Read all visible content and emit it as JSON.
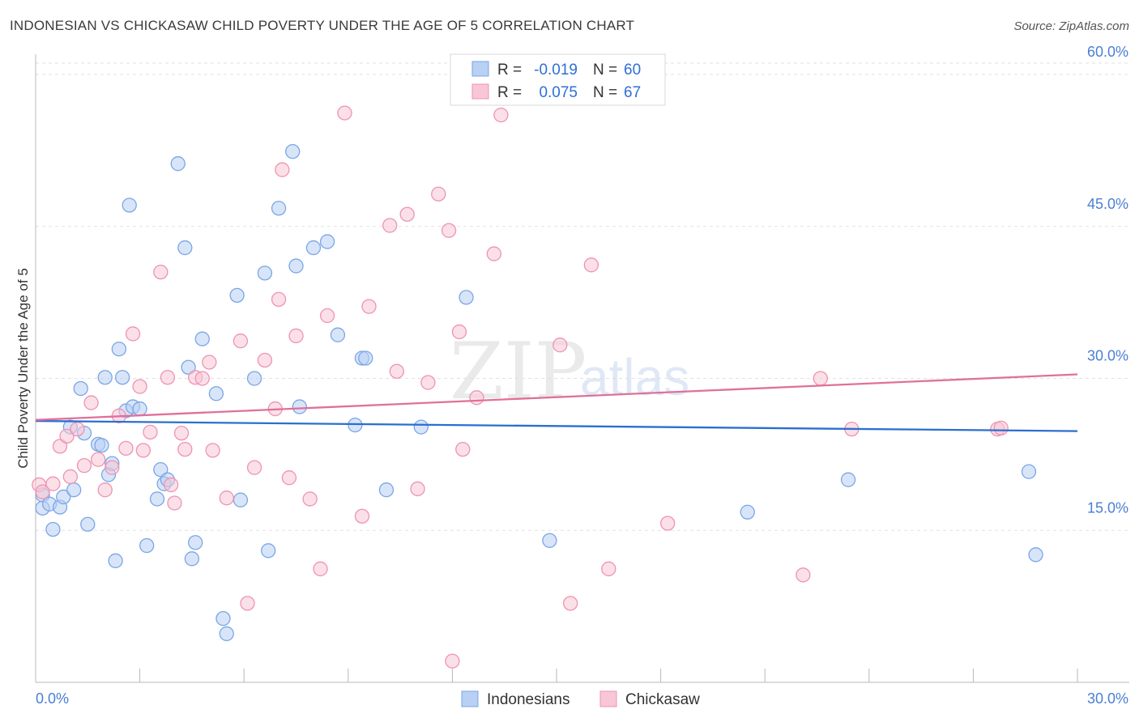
{
  "title": "INDONESIAN VS CHICKASAW CHILD POVERTY UNDER THE AGE OF 5 CORRELATION CHART",
  "source": "Source: ZipAtlas.com",
  "watermark": {
    "zip": "ZIP",
    "atlas": "atlas"
  },
  "colors": {
    "indonesians_fill": "#b8d0f4",
    "indonesians_stroke": "#7aa6e6",
    "indonesians_line": "#2a6fcf",
    "chickasaw_fill": "#f8c6d6",
    "chickasaw_stroke": "#ee93b3",
    "chickasaw_line": "#e0709a",
    "tick_color": "#4a7fd4",
    "grid": "#e2e2e2"
  },
  "legend_top": {
    "rows": [
      {
        "r_label": "R =",
        "r_value": "-0.019",
        "n_label": "N =",
        "n_value": "60"
      },
      {
        "r_label": "R =",
        "r_value": "0.075",
        "n_label": "N =",
        "n_value": "67"
      }
    ]
  },
  "legend_bottom": {
    "items": [
      "Indonesians",
      "Chickasaw"
    ]
  },
  "chart_data": {
    "type": "scatter",
    "title": "INDONESIAN VS CHICKASAW CHILD POVERTY UNDER THE AGE OF 5 CORRELATION CHART",
    "xlabel": "",
    "ylabel": "Child Poverty Under the Age of 5",
    "xlim": [
      0,
      30
    ],
    "ylim": [
      0,
      61.6
    ],
    "x_tick_labels": [
      "0.0%",
      "30.0%"
    ],
    "y_ticks": [
      15,
      30,
      45,
      60
    ],
    "y_tick_labels": [
      "15.0%",
      "30.0%",
      "45.0%",
      "60.0%"
    ],
    "grid": true,
    "series": [
      {
        "name": "Indonesians",
        "r": -0.019,
        "n": 60,
        "trend": [
          [
            0,
            25.8
          ],
          [
            30,
            24.8
          ]
        ],
        "points": [
          [
            0.2,
            18.5
          ],
          [
            0.2,
            17.2
          ],
          [
            0.4,
            17.6
          ],
          [
            0.5,
            15.1
          ],
          [
            0.7,
            17.3
          ],
          [
            0.8,
            18.3
          ],
          [
            1.0,
            25.2
          ],
          [
            1.1,
            19.0
          ],
          [
            1.3,
            29.0
          ],
          [
            1.4,
            24.6
          ],
          [
            1.5,
            15.6
          ],
          [
            1.8,
            23.5
          ],
          [
            1.9,
            23.4
          ],
          [
            2.0,
            30.1
          ],
          [
            2.1,
            20.5
          ],
          [
            2.2,
            21.6
          ],
          [
            2.3,
            12.0
          ],
          [
            2.4,
            32.9
          ],
          [
            2.5,
            30.1
          ],
          [
            2.6,
            26.8
          ],
          [
            2.7,
            47.1
          ],
          [
            2.8,
            27.2
          ],
          [
            3.0,
            27.0
          ],
          [
            3.2,
            13.5
          ],
          [
            3.5,
            18.1
          ],
          [
            3.6,
            21.0
          ],
          [
            3.7,
            19.6
          ],
          [
            3.8,
            20.0
          ],
          [
            4.1,
            51.2
          ],
          [
            4.3,
            42.9
          ],
          [
            4.4,
            31.1
          ],
          [
            4.5,
            12.2
          ],
          [
            4.6,
            13.8
          ],
          [
            4.8,
            33.9
          ],
          [
            5.2,
            28.5
          ],
          [
            5.4,
            6.3
          ],
          [
            5.5,
            4.8
          ],
          [
            5.8,
            38.2
          ],
          [
            5.9,
            18.0
          ],
          [
            6.3,
            30.0
          ],
          [
            6.6,
            40.4
          ],
          [
            6.7,
            13.0
          ],
          [
            7.0,
            46.8
          ],
          [
            7.4,
            52.4
          ],
          [
            7.5,
            41.1
          ],
          [
            7.6,
            27.2
          ],
          [
            8.0,
            42.9
          ],
          [
            8.4,
            43.5
          ],
          [
            8.7,
            34.3
          ],
          [
            9.2,
            25.4
          ],
          [
            9.4,
            32.0
          ],
          [
            9.5,
            32.0
          ],
          [
            10.1,
            19.0
          ],
          [
            11.1,
            25.2
          ],
          [
            12.4,
            38.0
          ],
          [
            14.8,
            14.0
          ],
          [
            20.5,
            16.8
          ],
          [
            23.4,
            20.0
          ],
          [
            28.6,
            20.8
          ],
          [
            28.8,
            12.6
          ]
        ]
      },
      {
        "name": "Chickasaw",
        "r": 0.075,
        "n": 67,
        "trend": [
          [
            0,
            25.9
          ],
          [
            30,
            30.4
          ]
        ],
        "points": [
          [
            0.1,
            19.5
          ],
          [
            0.2,
            18.8
          ],
          [
            0.5,
            19.6
          ],
          [
            0.7,
            23.3
          ],
          [
            0.9,
            24.3
          ],
          [
            1.0,
            20.3
          ],
          [
            1.2,
            25.0
          ],
          [
            1.4,
            21.4
          ],
          [
            1.6,
            27.6
          ],
          [
            1.8,
            22.0
          ],
          [
            2.0,
            19.0
          ],
          [
            2.2,
            21.2
          ],
          [
            2.4,
            26.3
          ],
          [
            2.6,
            23.1
          ],
          [
            2.8,
            34.4
          ],
          [
            3.0,
            29.2
          ],
          [
            3.1,
            22.9
          ],
          [
            3.3,
            24.7
          ],
          [
            3.6,
            40.5
          ],
          [
            3.8,
            30.1
          ],
          [
            3.9,
            19.5
          ],
          [
            4.0,
            17.7
          ],
          [
            4.2,
            24.6
          ],
          [
            4.3,
            23.0
          ],
          [
            4.6,
            30.1
          ],
          [
            4.8,
            30.0
          ],
          [
            5.0,
            31.6
          ],
          [
            5.1,
            22.9
          ],
          [
            5.5,
            18.2
          ],
          [
            5.9,
            33.7
          ],
          [
            6.1,
            7.8
          ],
          [
            6.3,
            21.2
          ],
          [
            6.6,
            31.8
          ],
          [
            6.9,
            27.0
          ],
          [
            7.0,
            37.8
          ],
          [
            7.1,
            50.6
          ],
          [
            7.3,
            20.2
          ],
          [
            7.5,
            34.2
          ],
          [
            7.9,
            18.1
          ],
          [
            8.2,
            11.2
          ],
          [
            8.4,
            36.2
          ],
          [
            8.9,
            56.2
          ],
          [
            9.4,
            16.4
          ],
          [
            9.6,
            37.1
          ],
          [
            10.2,
            45.1
          ],
          [
            10.4,
            30.7
          ],
          [
            10.7,
            46.2
          ],
          [
            11.0,
            19.1
          ],
          [
            11.3,
            29.6
          ],
          [
            11.6,
            48.2
          ],
          [
            11.9,
            44.6
          ],
          [
            12.0,
            2.1
          ],
          [
            12.2,
            34.6
          ],
          [
            12.3,
            23.0
          ],
          [
            12.7,
            28.1
          ],
          [
            13.2,
            42.3
          ],
          [
            13.4,
            56.0
          ],
          [
            15.1,
            33.3
          ],
          [
            15.4,
            7.8
          ],
          [
            16.0,
            41.2
          ],
          [
            16.5,
            11.2
          ],
          [
            18.2,
            15.7
          ],
          [
            22.1,
            10.6
          ],
          [
            22.6,
            30.0
          ],
          [
            23.5,
            25.0
          ],
          [
            27.7,
            25.0
          ],
          [
            27.8,
            25.1
          ]
        ]
      }
    ]
  }
}
